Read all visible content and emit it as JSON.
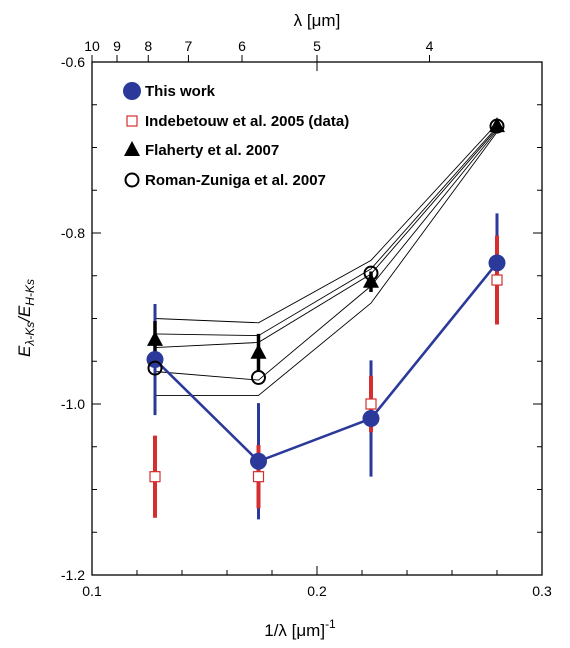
{
  "chart_data": {
    "type": "scatter",
    "xlabel": "1/λ [μm]",
    "xlabel_sup": "-1",
    "ylabel_main": "E",
    "ylabel_sub1": "λ-Ks",
    "ylabel_mid": "/E",
    "ylabel_sub2": "H-Ks",
    "top_label": "λ [μm]",
    "xlim": [
      0.1,
      0.3
    ],
    "ylim": [
      -1.2,
      -0.6
    ],
    "x_ticks": [
      {
        "value": 0.1,
        "label": "0.1"
      },
      {
        "value": 0.2,
        "label": "0.2"
      },
      {
        "value": 0.3,
        "label": "0.3"
      }
    ],
    "y_ticks": [
      {
        "value": -1.2,
        "label": "-1.2"
      },
      {
        "value": -1.0,
        "label": "-1.0"
      },
      {
        "value": -0.8,
        "label": "-0.8"
      },
      {
        "value": -0.6,
        "label": "-0.6"
      }
    ],
    "top_ticks": [
      {
        "value": 10,
        "label": "10"
      },
      {
        "value": 9,
        "label": "9"
      },
      {
        "value": 8,
        "label": "8"
      },
      {
        "value": 7,
        "label": "7"
      },
      {
        "value": 6,
        "label": "6"
      },
      {
        "value": 5,
        "label": "5"
      },
      {
        "value": 4,
        "label": "4"
      }
    ],
    "legend_position": "top-left",
    "series": [
      {
        "name": "This work",
        "marker": "filled-circle",
        "color": "#2b3a9a",
        "line": true,
        "points": [
          {
            "x": 0.128,
            "y": -0.948,
            "err": 0.065
          },
          {
            "x": 0.174,
            "y": -1.067,
            "err": 0.068
          },
          {
            "x": 0.224,
            "y": -1.017,
            "err": 0.068
          },
          {
            "x": 0.28,
            "y": -0.835,
            "err": 0.058
          }
        ]
      },
      {
        "name": "Indebetouw et al. 2005 (data)",
        "marker": "open-square",
        "color": "#d42e2e",
        "line": false,
        "points": [
          {
            "x": 0.128,
            "y": -1.085,
            "err": 0.048
          },
          {
            "x": 0.174,
            "y": -1.085,
            "err": 0.037
          },
          {
            "x": 0.224,
            "y": -1.0,
            "err": 0.033
          },
          {
            "x": 0.28,
            "y": -0.855,
            "err": 0.052
          }
        ]
      },
      {
        "name": "Flaherty et al. 2007",
        "marker": "filled-triangle",
        "color": "#000000",
        "line": false,
        "points": [
          {
            "x": 0.128,
            "y": -0.925,
            "err": 0.022
          },
          {
            "x": 0.174,
            "y": -0.94,
            "err": 0.022
          },
          {
            "x": 0.224,
            "y": -0.857,
            "err": 0.012
          },
          {
            "x": 0.28,
            "y": -0.675,
            "err": 0.004
          }
        ]
      },
      {
        "name": "Roman-Zuniga et al. 2007",
        "marker": "open-circle",
        "color": "#000000",
        "line": false,
        "points": [
          {
            "x": 0.128,
            "y": -0.958
          },
          {
            "x": 0.174,
            "y": -0.969
          },
          {
            "x": 0.224,
            "y": -0.847
          },
          {
            "x": 0.28,
            "y": -0.675
          }
        ]
      }
    ],
    "model_lines": [
      [
        [
          0.128,
          -0.99
        ],
        [
          0.174,
          -0.99
        ],
        [
          0.224,
          -0.882
        ],
        [
          0.28,
          -0.682
        ]
      ],
      [
        [
          0.128,
          -0.962
        ],
        [
          0.174,
          -0.972
        ],
        [
          0.224,
          -0.862
        ],
        [
          0.28,
          -0.68
        ]
      ],
      [
        [
          0.128,
          -0.934
        ],
        [
          0.174,
          -0.928
        ],
        [
          0.224,
          -0.848
        ],
        [
          0.28,
          -0.678
        ]
      ],
      [
        [
          0.128,
          -0.918
        ],
        [
          0.174,
          -0.92
        ],
        [
          0.224,
          -0.842
        ],
        [
          0.28,
          -0.676
        ]
      ],
      [
        [
          0.128,
          -0.9
        ],
        [
          0.174,
          -0.905
        ],
        [
          0.224,
          -0.832
        ],
        [
          0.28,
          -0.672
        ]
      ]
    ]
  }
}
